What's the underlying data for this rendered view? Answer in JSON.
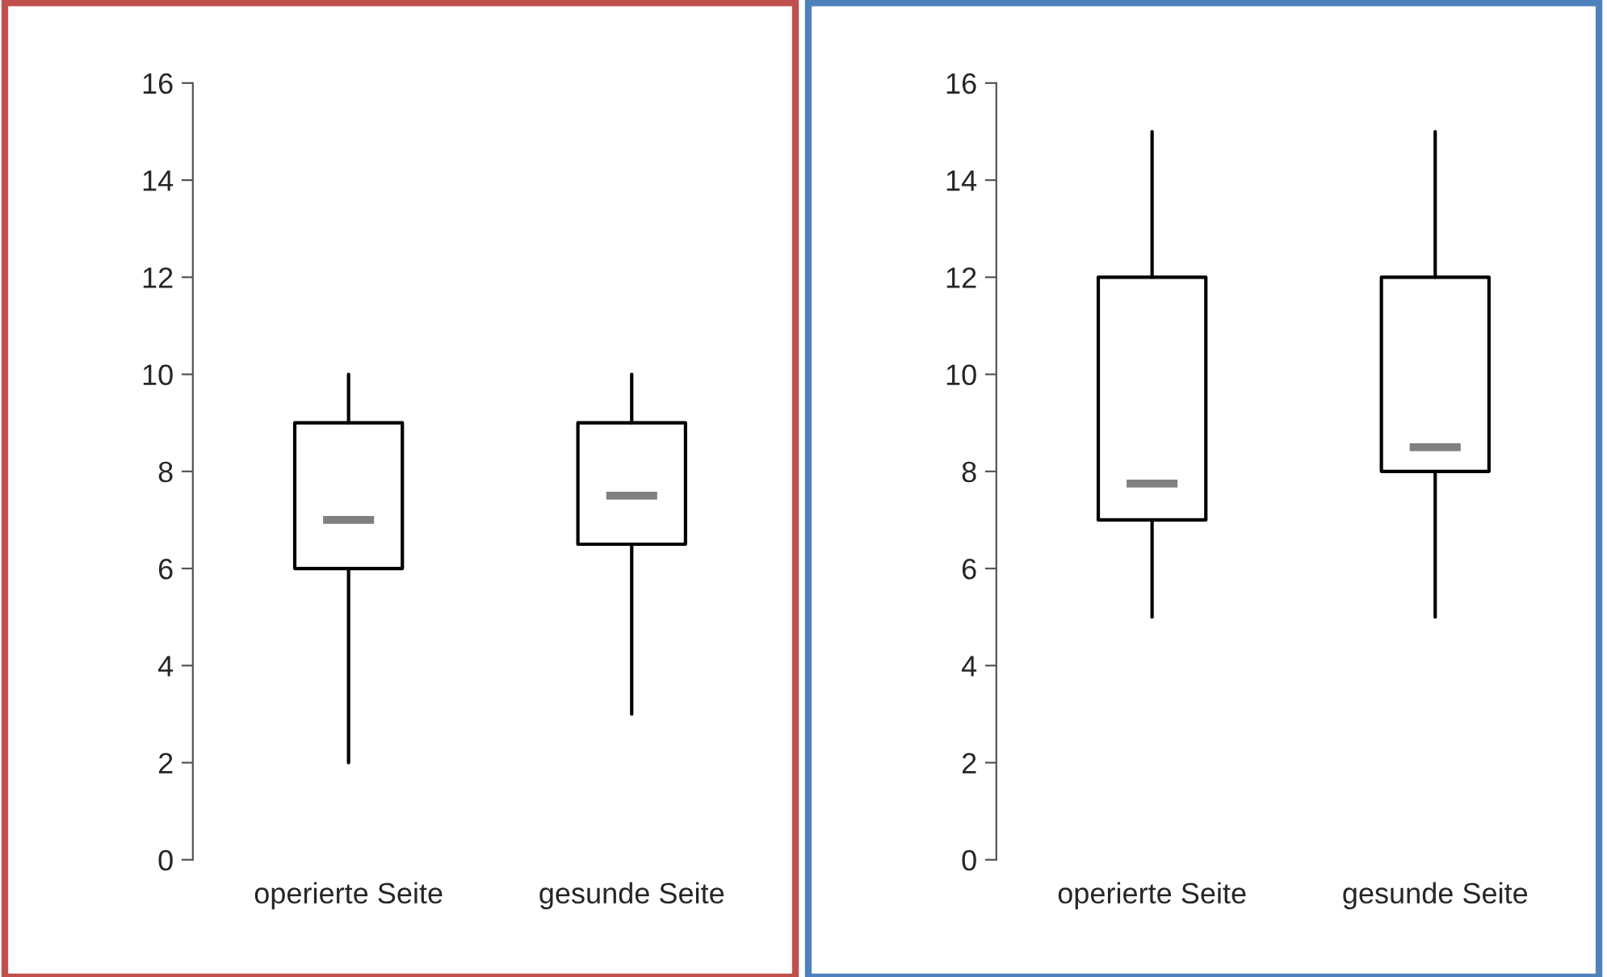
{
  "chart_data": [
    {
      "type": "box",
      "categories": [
        "operierte Seite",
        "gesunde Seite"
      ],
      "ylim": [
        0,
        16
      ],
      "yticks": [
        0,
        2,
        4,
        6,
        8,
        10,
        12,
        14,
        16
      ],
      "grid": false,
      "boxes": [
        {
          "low": 2,
          "q1": 6,
          "median": 7,
          "q3": 9,
          "high": 10
        },
        {
          "low": 3,
          "q1": 6.5,
          "median": 7.5,
          "q3": 9,
          "high": 10
        }
      ]
    },
    {
      "type": "box",
      "categories": [
        "operierte Seite",
        "gesunde Seite"
      ],
      "ylim": [
        0,
        16
      ],
      "yticks": [
        0,
        2,
        4,
        6,
        8,
        10,
        12,
        14,
        16
      ],
      "grid": false,
      "boxes": [
        {
          "low": 5,
          "q1": 7,
          "median": 7.75,
          "q3": 12,
          "high": 15
        },
        {
          "low": 5,
          "q1": 8,
          "median": 8.5,
          "q3": 12,
          "high": 15
        }
      ]
    }
  ]
}
